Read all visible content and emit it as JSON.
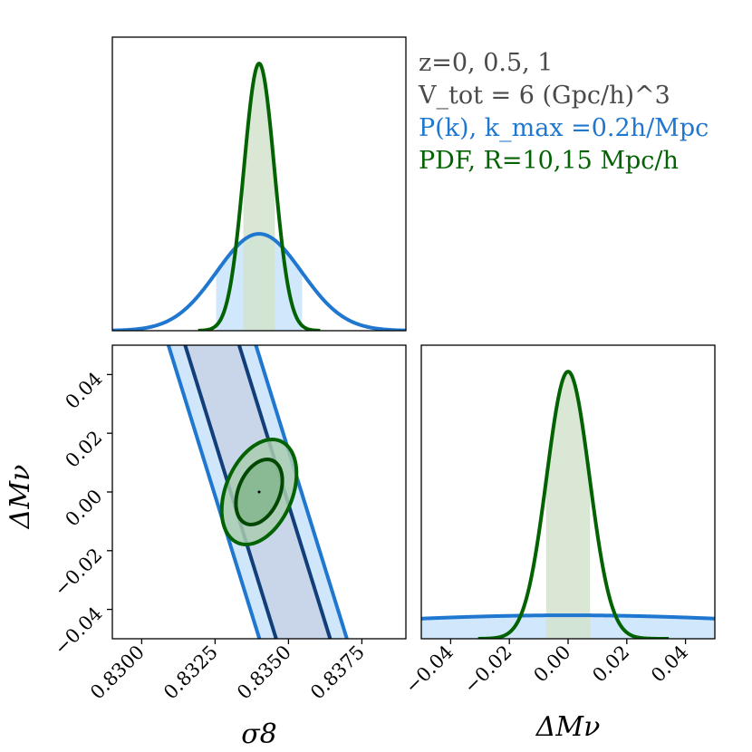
{
  "colors": {
    "pk_line": "#1f77d0",
    "pk_fill": "#cfe6fb",
    "pk_inner_line": "#123f7a",
    "pk_inner_fill": "#c9d6ea",
    "pdf_line": "#036303",
    "pdf_fill": "#d2e3cd",
    "pdf_inner_fill": "#82b68c",
    "pdf_outer_fill": "#a9cdb0",
    "axes": "#000000",
    "legend_text": "#4a4a4a"
  },
  "legend": {
    "line1": "z=0, 0.5, 1",
    "line2": "V_tot = 6 (Gpc/h)^3",
    "line3": "P(k), k_max =0.2h/Mpc",
    "line4": "PDF, R=10,15 Mpc/h"
  },
  "chart_data": [
    {
      "type": "line",
      "panel": "sigma8-marginal",
      "xlim": [
        0.829,
        0.839
      ],
      "series": [
        {
          "name": "P(k), k_max=0.2h/Mpc",
          "mean": 0.834,
          "sigma": 0.00145,
          "peak_fraction": 0.33
        },
        {
          "name": "PDF, R=10,15 Mpc/h",
          "mean": 0.834,
          "sigma": 0.00052,
          "peak_fraction": 0.91
        }
      ]
    },
    {
      "type": "scatter",
      "panel": "sigma8-vs-dMnu",
      "xlabel": "σ8",
      "ylabel": "ΔMν",
      "xlim": [
        0.829,
        0.839
      ],
      "ylim": [
        -0.05,
        0.05
      ],
      "xticks": [
        0.83,
        0.8325,
        0.835,
        0.8375
      ],
      "xtick_labels": [
        "0.8300",
        "0.8325",
        "0.8350",
        "0.8375"
      ],
      "yticks": [
        -0.04,
        -0.02,
        0.0,
        0.02,
        0.04
      ],
      "ytick_labels": [
        "−0.04",
        "−0.02",
        "0.00",
        "0.02",
        "0.04"
      ],
      "fiducial": [
        0.834,
        0.0
      ],
      "pk_band": {
        "center_at_ymax": 0.8324,
        "center_at_ymin": 0.8355,
        "half_width_inner": 0.00092,
        "half_width_outer": 0.00149
      },
      "pdf_ellipse": {
        "center": [
          0.834,
          0.0
        ],
        "sigma_x": 0.00052,
        "sigma_y": 0.0073,
        "correlation": 0.35
      }
    },
    {
      "type": "line",
      "panel": "dMnu-marginal",
      "xlabel": "ΔMν",
      "xlim": [
        -0.05,
        0.05
      ],
      "xticks": [
        -0.04,
        -0.02,
        0.0,
        0.02,
        0.04
      ],
      "xtick_labels": [
        "−0.04",
        "−0.02",
        "0.00",
        "0.02",
        "0.04"
      ],
      "series": [
        {
          "name": "P(k), k_max=0.2h/Mpc",
          "mean": 0.0,
          "sigma": 0.09,
          "peak_fraction": 0.08
        },
        {
          "name": "PDF, R=10,15 Mpc/h",
          "mean": 0.0,
          "sigma": 0.0073,
          "peak_fraction": 0.91
        }
      ]
    }
  ]
}
